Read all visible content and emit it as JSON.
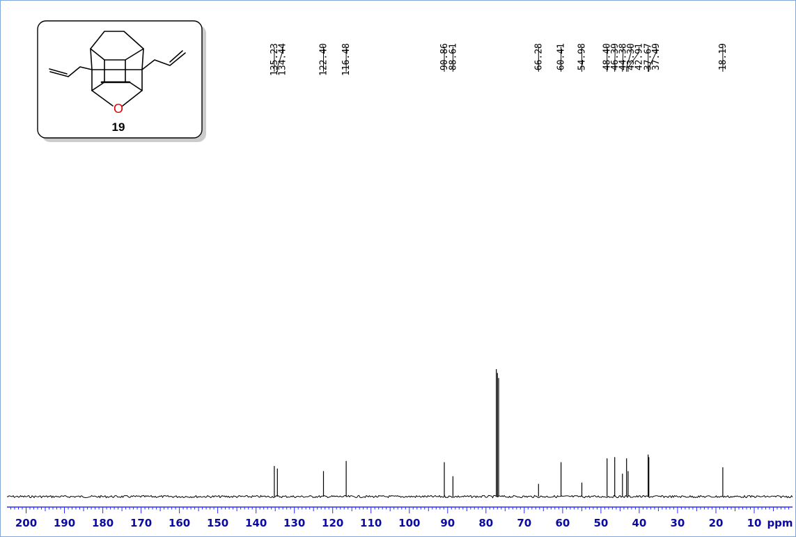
{
  "chart_data": {
    "type": "line",
    "title": "",
    "xlabel": "ppm",
    "ylabel": "",
    "x_reversed": true,
    "xlim": [
      205,
      0
    ],
    "xticks": [
      200,
      190,
      180,
      170,
      160,
      150,
      140,
      130,
      120,
      110,
      100,
      90,
      80,
      70,
      60,
      50,
      40,
      30,
      20,
      10
    ],
    "x_unit_label": "ppm",
    "peak_labels": [
      "135.23",
      "134.44",
      "122.40",
      "116.48",
      "90.86",
      "88.61",
      "66.28",
      "60.41",
      "54.98",
      "48.40",
      "46.39",
      "44.38",
      "43.30",
      "42.91",
      "37.67",
      "37.49",
      "18.19"
    ],
    "peaks": [
      {
        "ppm": 135.23,
        "intensity": 0.24
      },
      {
        "ppm": 134.44,
        "intensity": 0.22
      },
      {
        "ppm": 122.4,
        "intensity": 0.2
      },
      {
        "ppm": 116.48,
        "intensity": 0.28
      },
      {
        "ppm": 90.86,
        "intensity": 0.27
      },
      {
        "ppm": 88.61,
        "intensity": 0.16
      },
      {
        "ppm": 77.3,
        "intensity": 1.0
      },
      {
        "ppm": 77.0,
        "intensity": 0.97
      },
      {
        "ppm": 76.7,
        "intensity": 0.93
      },
      {
        "ppm": 66.28,
        "intensity": 0.1
      },
      {
        "ppm": 60.41,
        "intensity": 0.27
      },
      {
        "ppm": 54.98,
        "intensity": 0.11
      },
      {
        "ppm": 48.4,
        "intensity": 0.3
      },
      {
        "ppm": 46.39,
        "intensity": 0.31
      },
      {
        "ppm": 44.38,
        "intensity": 0.18
      },
      {
        "ppm": 43.3,
        "intensity": 0.3
      },
      {
        "ppm": 42.91,
        "intensity": 0.2
      },
      {
        "ppm": 37.67,
        "intensity": 0.33
      },
      {
        "ppm": 37.49,
        "intensity": 0.31
      },
      {
        "ppm": 18.19,
        "intensity": 0.23
      }
    ]
  },
  "structure": {
    "compound_number": "19",
    "heteroatom": "O"
  },
  "colors": {
    "axis_text": "#0a0aa0",
    "axis_line": "#2b2bff",
    "spectrum": "#000000",
    "frame": "#7ea7d8",
    "oxygen": "#e00000"
  }
}
